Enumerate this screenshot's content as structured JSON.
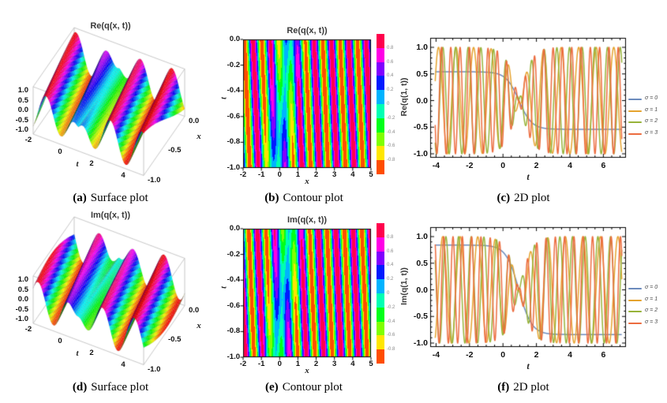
{
  "colors": {
    "background": "#ffffff",
    "frame": "#000000",
    "tick_text": "#111111",
    "plot_title_text": "#3a3a3a",
    "caption_text": "#000000",
    "colorbar_label_text": "#8a8a8a",
    "box3d_edge": "#b9b9b9",
    "rainbow_bands": [
      "#ff004d",
      "#ff00e6",
      "#8000ff",
      "#001aff",
      "#00b3ff",
      "#00ffb3",
      "#00ff1a",
      "#80ff00",
      "#ffe600",
      "#ff4d00"
    ]
  },
  "chart_data": [
    {
      "id": "a",
      "type": "surface3d",
      "title": "Re(q(x, t))",
      "caption_tag": "(a)",
      "caption_text": "Surface plot",
      "t_label": "t",
      "x_label": "x",
      "z_ticks": [
        "1.0",
        "0.5",
        "0.0",
        "-0.5",
        "-1.0"
      ],
      "z_tick_values": [
        1,
        0.5,
        0,
        -0.5,
        -1
      ],
      "t_ticks": [
        "-2",
        "0",
        "2",
        "4"
      ],
      "t_tick_values": [
        -2,
        0,
        2,
        4
      ],
      "x_ticks": [
        "0.0",
        "-0.5",
        "-1.0"
      ],
      "x_tick_values": [
        0,
        -0.5,
        -1
      ],
      "t_range": [
        -2,
        5
      ],
      "x_range": [
        -1,
        0
      ],
      "z_range": [
        -1,
        1
      ],
      "model": {
        "desc": "periodic wave train with kink envelope, rainbow height coloring",
        "omega": 3.1,
        "k": 2.2,
        "phase": -0.4,
        "env_b": 1.0,
        "env_t0": 0.85
      }
    },
    {
      "id": "b",
      "type": "contour",
      "title": "Re(q(x, t))",
      "caption_tag": "(b)",
      "caption_text": "Contour plot",
      "xlabel": "x",
      "ylabel": "t",
      "x_ticks": [
        "-2",
        "-1",
        "0",
        "1",
        "2",
        "3",
        "4",
        "5"
      ],
      "x_tick_values": [
        -2,
        -1,
        0,
        1,
        2,
        3,
        4,
        5
      ],
      "y_ticks": [
        "0.0",
        "-0.2",
        "-0.4",
        "-0.6",
        "-0.8",
        "-1.0"
      ],
      "y_tick_values": [
        0,
        -0.2,
        -0.4,
        -0.6,
        -0.8,
        -1.0
      ],
      "x_range": [
        -2,
        5
      ],
      "t_range": [
        -1,
        0
      ],
      "z_range": [
        -1,
        1
      ],
      "colorbar_ticks": [
        "0.8",
        "0.6",
        "0.4",
        "0.2",
        "0",
        "-0.2",
        "-0.4",
        "-0.6",
        "-0.8"
      ],
      "model": {
        "k": 6.6,
        "omega": 2.0,
        "phase": 0.2,
        "kink_b": 1.6,
        "kink_x0": 0.55,
        "kink_slope": 0.75
      }
    },
    {
      "id": "c",
      "type": "line",
      "caption_tag": "(c)",
      "caption_text": "2D plot",
      "xlabel": "t",
      "ylabel": "Re(q(1, t))",
      "x_ticks": [
        "-4",
        "-2",
        "0",
        "2",
        "4",
        "6"
      ],
      "x_tick_values": [
        -4,
        -2,
        0,
        2,
        4,
        6
      ],
      "y_ticks": [
        "1.0",
        "0.5",
        "0.0",
        "-0.5",
        "-1.0"
      ],
      "y_tick_values": [
        1,
        0.5,
        0,
        -0.5,
        -1
      ],
      "x_range": [
        -4.35,
        7.35
      ],
      "y_range": [
        -1.1,
        1.1
      ],
      "x_minor_step": 0.5,
      "y_minor_step": 0.1,
      "legend_position": "right-outside",
      "series": [
        {
          "label": "σ = 0",
          "color": "#6c8bbd",
          "model": "kink",
          "amplitude": 0.54,
          "steepness": 1.3,
          "center_t": 0.95
        },
        {
          "label": "σ = 1",
          "color": "#e5a32e",
          "model": "oscillation",
          "amplitude": 1.0,
          "omega": 6.0,
          "phase": 3.67,
          "env_b": 1.3,
          "env_t0": 0.95
        },
        {
          "label": "σ = 2",
          "color": "#97b33a",
          "model": "oscillation",
          "amplitude": 1.0,
          "omega": 8.3,
          "phase": 0.0,
          "env_b": 1.3,
          "env_t0": 0.95
        },
        {
          "label": "σ = 3",
          "color": "#ec6c3f",
          "model": "oscillation",
          "amplitude": 1.0,
          "omega": 11.3,
          "phase": 2.0,
          "env_b": 1.3,
          "env_t0": 0.95
        }
      ]
    },
    {
      "id": "d",
      "type": "surface3d",
      "title": "Im(q(x, t))",
      "caption_tag": "(d)",
      "caption_text": "Surface plot",
      "t_label": "t",
      "x_label": "x",
      "z_ticks": [
        "1.0",
        "0.5",
        "0.0",
        "-0.5",
        "-1.0"
      ],
      "z_tick_values": [
        1,
        0.5,
        0,
        -0.5,
        -1
      ],
      "t_ticks": [
        "-2",
        "0",
        "2",
        "4"
      ],
      "t_tick_values": [
        -2,
        0,
        2,
        4
      ],
      "x_ticks": [
        "0.0",
        "-0.5",
        "-1.0"
      ],
      "x_tick_values": [
        0,
        -0.5,
        -1
      ],
      "t_range": [
        -2,
        5
      ],
      "x_range": [
        -1,
        0
      ],
      "z_range": [
        -1,
        1
      ],
      "model": {
        "desc": "periodic wave train with kink envelope, rainbow height coloring",
        "omega": 3.1,
        "k": 2.2,
        "phase": 1.17,
        "env_b": 1.0,
        "env_t0": 0.85
      }
    },
    {
      "id": "e",
      "type": "contour",
      "title": "Im(q(x, t))",
      "caption_tag": "(e)",
      "caption_text": "Contour plot",
      "xlabel": "x",
      "ylabel": "t",
      "x_ticks": [
        "-2",
        "-1",
        "0",
        "1",
        "2",
        "3",
        "4",
        "5"
      ],
      "x_tick_values": [
        -2,
        -1,
        0,
        1,
        2,
        3,
        4,
        5
      ],
      "y_ticks": [
        "0.0",
        "-0.2",
        "-0.4",
        "-0.6",
        "-0.8",
        "-1.0"
      ],
      "y_tick_values": [
        0,
        -0.2,
        -0.4,
        -0.6,
        -0.8,
        -1.0
      ],
      "x_range": [
        -2,
        5
      ],
      "t_range": [
        -1,
        0
      ],
      "z_range": [
        -1,
        1
      ],
      "colorbar_ticks": [
        "0.8",
        "0.6",
        "0.4",
        "0.2",
        "0",
        "-0.2",
        "-0.4",
        "-0.6",
        "-0.8"
      ],
      "model": {
        "k": 6.6,
        "omega": 2.0,
        "phase": -1.37,
        "kink_b": 1.6,
        "kink_x0": 0.55,
        "kink_slope": 0.75
      }
    },
    {
      "id": "f",
      "type": "line",
      "caption_tag": "(f)",
      "caption_text": "2D plot",
      "xlabel": "t",
      "ylabel": "Im(q(1, t))",
      "x_ticks": [
        "-4",
        "-2",
        "0",
        "2",
        "4",
        "6"
      ],
      "x_tick_values": [
        -4,
        -2,
        0,
        2,
        4,
        6
      ],
      "y_ticks": [
        "1.0",
        "0.5",
        "0.0",
        "-0.5",
        "-1.0"
      ],
      "y_tick_values": [
        1,
        0.5,
        0,
        -0.5,
        -1
      ],
      "x_range": [
        -4.35,
        7.35
      ],
      "y_range": [
        -1.1,
        1.1
      ],
      "x_minor_step": 0.5,
      "y_minor_step": 0.1,
      "legend_position": "right-outside",
      "series": [
        {
          "label": "σ = 0",
          "color": "#6c8bbd",
          "model": "kink",
          "amplitude": 0.84,
          "steepness": 1.3,
          "center_t": 0.95
        },
        {
          "label": "σ = 1",
          "color": "#e5a32e",
          "model": "oscillation",
          "amplitude": 1.0,
          "omega": 6.0,
          "phase": 2.17,
          "env_b": 1.3,
          "env_t0": 0.95
        },
        {
          "label": "σ = 2",
          "color": "#97b33a",
          "model": "oscillation",
          "amplitude": 1.0,
          "omega": 8.3,
          "phase": -1.5,
          "env_b": 1.3,
          "env_t0": 0.95
        },
        {
          "label": "σ = 3",
          "color": "#ec6c3f",
          "model": "oscillation",
          "amplitude": 1.0,
          "omega": 11.3,
          "phase": 0.5,
          "env_b": 1.3,
          "env_t0": 0.95
        }
      ]
    }
  ]
}
